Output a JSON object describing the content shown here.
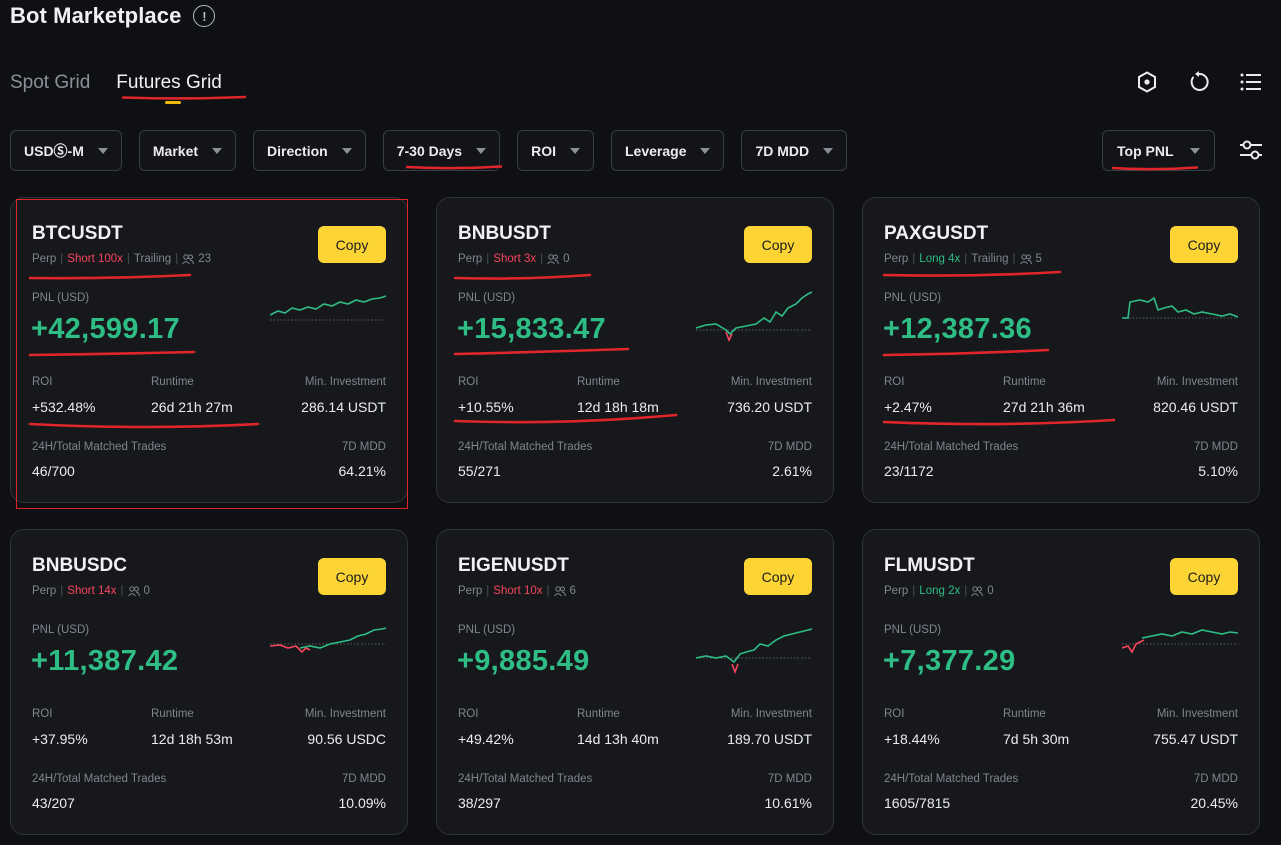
{
  "header": {
    "title": "Bot Marketplace"
  },
  "tabs": [
    {
      "label": "Spot Grid",
      "active": false
    },
    {
      "label": "Futures Grid",
      "active": true
    }
  ],
  "filters": [
    {
      "label": "USDⓈ-M"
    },
    {
      "label": "Market"
    },
    {
      "label": "Direction"
    },
    {
      "label": "7-30 Days"
    },
    {
      "label": "ROI"
    },
    {
      "label": "Leverage"
    },
    {
      "label": "7D MDD"
    }
  ],
  "sort": {
    "label": "Top PNL"
  },
  "labels": {
    "pnl": "PNL (USD)",
    "roi": "ROI",
    "runtime": "Runtime",
    "min_investment": "Min. Investment",
    "trades": "24H/Total Matched Trades",
    "mdd": "7D MDD",
    "copy": "Copy"
  },
  "colors": {
    "accent": "#fcd535",
    "positive": "#2ebd85",
    "negative": "#f6465d",
    "annotation": "#e0262b"
  },
  "cards": [
    {
      "symbol": "BTCUSDT",
      "type": "Perp",
      "direction": "Short",
      "leverage": "Short 100x",
      "trailing": "Trailing",
      "copiers": "23",
      "pnl": "+42,599.17",
      "roi": "+532.48%",
      "runtime": "26d 21h 27m",
      "min_investment": "286.14 USDT",
      "trades": "46/700",
      "mdd": "64.21%"
    },
    {
      "symbol": "BNBUSDT",
      "type": "Perp",
      "direction": "Short",
      "leverage": "Short 3x",
      "trailing": "",
      "copiers": "0",
      "pnl": "+15,833.47",
      "roi": "+10.55%",
      "runtime": "12d 18h 18m",
      "min_investment": "736.20 USDT",
      "trades": "55/271",
      "mdd": "2.61%"
    },
    {
      "symbol": "PAXGUSDT",
      "type": "Perp",
      "direction": "Long",
      "leverage": "Long 4x",
      "trailing": "Trailing",
      "copiers": "5",
      "pnl": "+12,387.36",
      "roi": "+2.47%",
      "runtime": "27d 21h 36m",
      "min_investment": "820.46 USDT",
      "trades": "23/1172",
      "mdd": "5.10%"
    },
    {
      "symbol": "BNBUSDC",
      "type": "Perp",
      "direction": "Short",
      "leverage": "Short 14x",
      "trailing": "",
      "copiers": "0",
      "pnl": "+11,387.42",
      "roi": "+37.95%",
      "runtime": "12d 18h 53m",
      "min_investment": "90.56 USDC",
      "trades": "43/207",
      "mdd": "10.09%"
    },
    {
      "symbol": "EIGENUSDT",
      "type": "Perp",
      "direction": "Short",
      "leverage": "Short 10x",
      "trailing": "",
      "copiers": "6",
      "pnl": "+9,885.49",
      "roi": "+49.42%",
      "runtime": "14d 13h 40m",
      "min_investment": "189.70 USDT",
      "trades": "38/297",
      "mdd": "10.61%"
    },
    {
      "symbol": "FLMUSDT",
      "type": "Perp",
      "direction": "Long",
      "leverage": "Long 2x",
      "trailing": "",
      "copiers": "0",
      "pnl": "+7,377.29",
      "roi": "+18.44%",
      "runtime": "7d 5h 30m",
      "min_investment": "755.47 USDT",
      "trades": "1605/7815",
      "mdd": "20.45%"
    }
  ]
}
